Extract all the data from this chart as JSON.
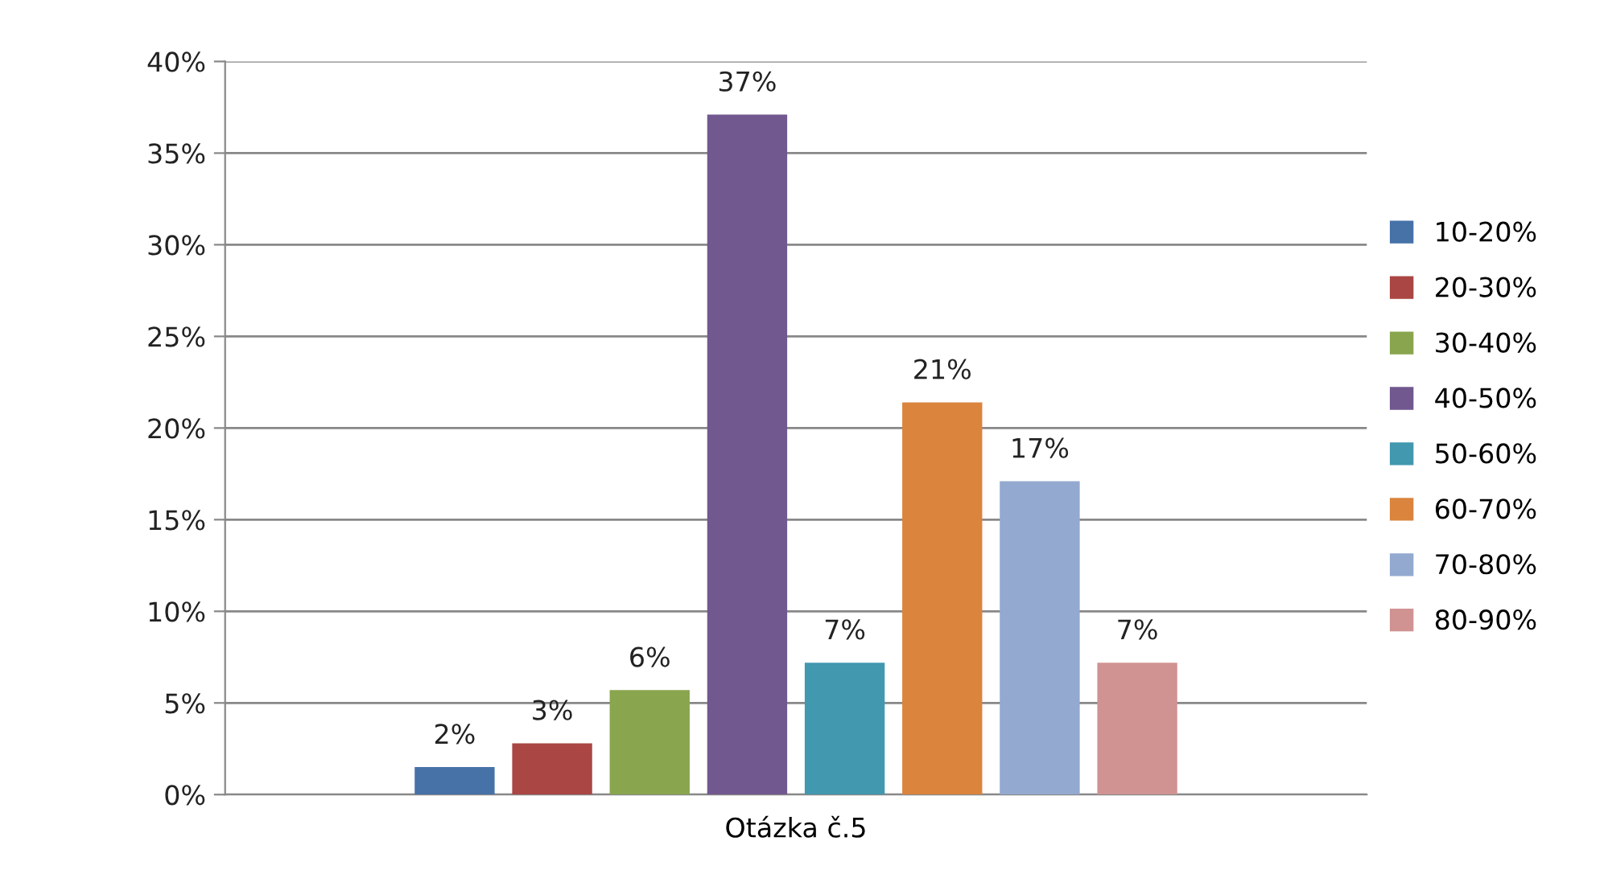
{
  "chart_data": {
    "type": "bar",
    "categories": [
      "Otázka č.5"
    ],
    "series": [
      {
        "name": "10-20%",
        "color": "#4672a8",
        "values": [
          1.5
        ],
        "value_labels": [
          "2%"
        ]
      },
      {
        "name": "20-30%",
        "color": "#aa4643",
        "values": [
          2.8
        ],
        "value_labels": [
          "3%"
        ]
      },
      {
        "name": "30-40%",
        "color": "#89a54e",
        "values": [
          5.7
        ],
        "value_labels": [
          "6%"
        ]
      },
      {
        "name": "40-50%",
        "color": "#71588f",
        "values": [
          37.1
        ],
        "value_labels": [
          "37%"
        ]
      },
      {
        "name": "50-60%",
        "color": "#4198af",
        "values": [
          7.2
        ],
        "value_labels": [
          "7%"
        ]
      },
      {
        "name": "60-70%",
        "color": "#db843d",
        "values": [
          21.4
        ],
        "value_labels": [
          "21%"
        ]
      },
      {
        "name": "70-80%",
        "color": "#93a9cf",
        "values": [
          17.1
        ],
        "value_labels": [
          "17%"
        ]
      },
      {
        "name": "80-90%",
        "color": "#d09392",
        "values": [
          7.2
        ],
        "value_labels": [
          "7%"
        ]
      }
    ],
    "ylim": [
      0,
      40
    ],
    "yticks": [
      {
        "value": 0,
        "label": "0%"
      },
      {
        "value": 5,
        "label": "5%"
      },
      {
        "value": 10,
        "label": "10%"
      },
      {
        "value": 15,
        "label": "15%"
      },
      {
        "value": 20,
        "label": "20%"
      },
      {
        "value": 25,
        "label": "25%"
      },
      {
        "value": 30,
        "label": "30%"
      },
      {
        "value": 35,
        "label": "35%"
      },
      {
        "value": 40,
        "label": "40%"
      }
    ],
    "grid": "y",
    "legend": "right"
  }
}
